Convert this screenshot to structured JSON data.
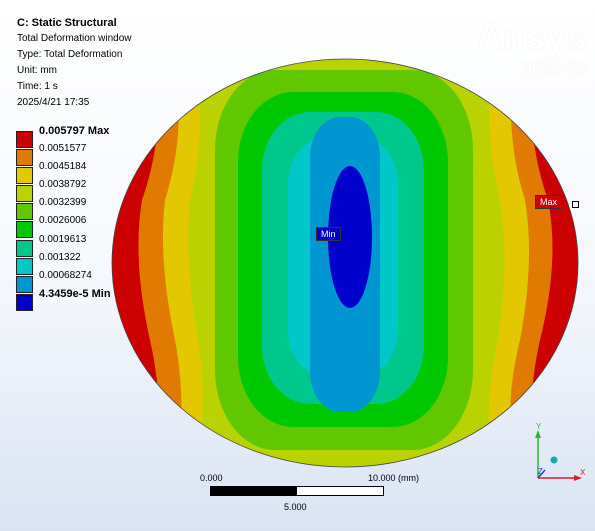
{
  "info": {
    "title": "C: Static Structural",
    "subtitle": "Total Deformation window",
    "type": "Type: Total Deformation",
    "unit": "Unit: mm",
    "time": "Time: 1 s",
    "date": "2025/4/21 17:35"
  },
  "brand": {
    "logo": "Ansys",
    "version": "2022 R1"
  },
  "legend": [
    {
      "label": "0.005797 Max",
      "color": "#cc0000",
      "bold": true
    },
    {
      "label": "0.0051577",
      "color": "#e07a00"
    },
    {
      "label": "0.0045184",
      "color": "#e3c800"
    },
    {
      "label": "0.0038792",
      "color": "#b9d200"
    },
    {
      "label": "0.0032399",
      "color": "#61c800"
    },
    {
      "label": "0.0026006",
      "color": "#00c800"
    },
    {
      "label": "0.0019613",
      "color": "#00c88c"
    },
    {
      "label": "0.001322",
      "color": "#00c8c8"
    },
    {
      "label": "0.00068274",
      "color": "#0096d2"
    },
    {
      "label": "4.3459e-5 Min",
      "color": "#0000cc",
      "bold": true
    }
  ],
  "probes": {
    "max_label": "Max",
    "min_label": "Min"
  },
  "scale_bar": {
    "left": "0.000",
    "right": "10.000 (mm)",
    "mid": "5.000"
  },
  "triad": {
    "y": "Y",
    "x": "X",
    "z": "Z"
  }
}
